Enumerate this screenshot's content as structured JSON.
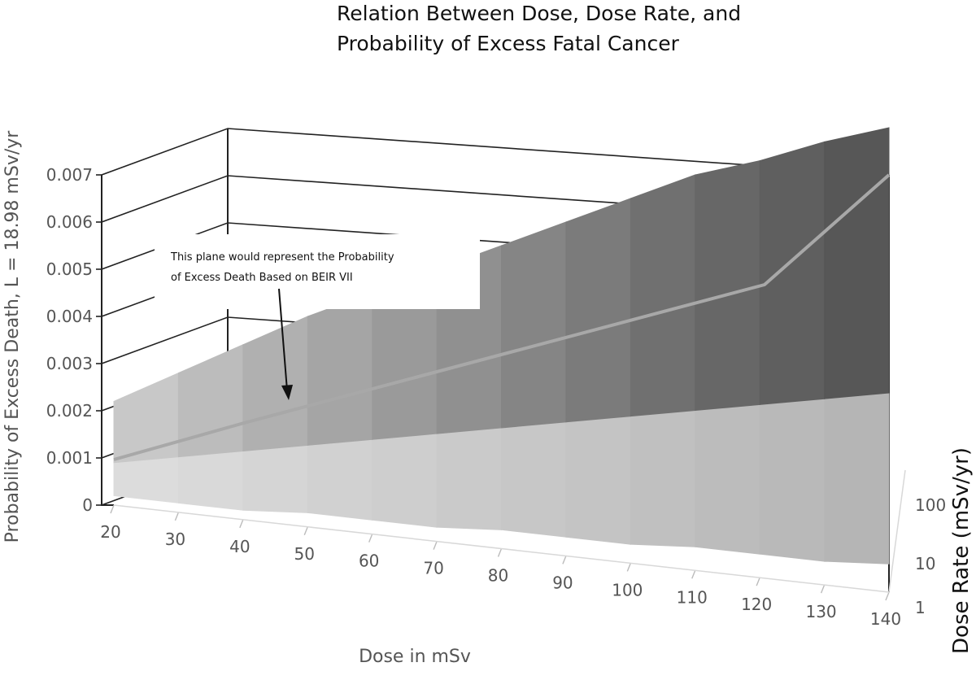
{
  "chart_data": {
    "type": "surface",
    "title_lines": [
      "Relation Between Dose, Dose Rate, and",
      "Probability of Excess Fatal Cancer"
    ],
    "xlabel": "Dose in mSv",
    "ylabel": "Probability of Excess Death, L = 18.98 mSv/yr",
    "zlabel": "Dose Rate (mSv/yr)",
    "x": [
      "20",
      "30",
      "40",
      "50",
      "60",
      "70",
      "80",
      "90",
      "100",
      "110",
      "120",
      "130",
      "140"
    ],
    "z": [
      "1",
      "10",
      "100"
    ],
    "y_ticks": [
      "0",
      "0.001",
      "0.002",
      "0.003",
      "0.004",
      "0.005",
      "0.006",
      "0.007"
    ],
    "ylim": [
      0,
      0.007
    ],
    "grid": true,
    "colors": {
      "surface_dark": "#1a1a1a",
      "surface_light": "#e2e2e2",
      "plane_line": "#a8a8a8",
      "grid": "#222222"
    },
    "series": [
      {
        "z": "1",
        "values": [
          0.0002,
          0.0002,
          0.0002,
          0.0003,
          0.0003,
          0.0003,
          0.0004,
          0.0004,
          0.0004,
          0.0005,
          0.0005,
          0.0005,
          0.0006
        ]
      },
      {
        "z": "10",
        "values": [
          0.0004,
          0.0006,
          0.0008,
          0.001,
          0.0012,
          0.0014,
          0.0016,
          0.0018,
          0.002,
          0.0022,
          0.0024,
          0.0026,
          0.0028
        ]
      },
      {
        "z": "100",
        "values": [
          0.0012,
          0.0018,
          0.0024,
          0.003,
          0.0035,
          0.004,
          0.0045,
          0.005,
          0.0055,
          0.006,
          0.0063,
          0.0067,
          0.007
        ]
      }
    ],
    "annotation": {
      "lines": [
        "This plane would represent the Probability",
        "of Excess Death Based on BEIR VII"
      ]
    }
  }
}
